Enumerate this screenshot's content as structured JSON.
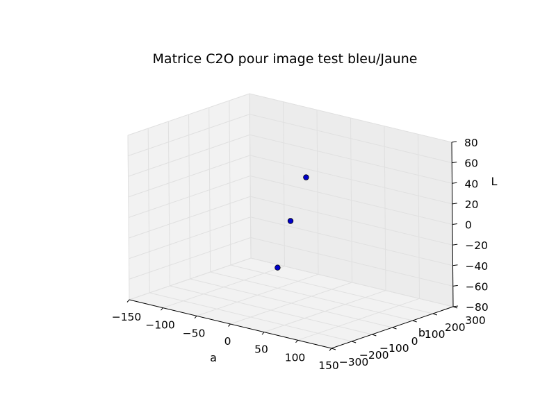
{
  "chart_data": {
    "type": "scatter",
    "projection": "3d",
    "title": "Matrice C2O pour image test bleu/Jaune",
    "xlabel": "a",
    "ylabel": "b",
    "zlabel": "L",
    "x_ticks": [
      "−150",
      "−100",
      "−50",
      "0",
      "50",
      "100",
      "150"
    ],
    "y_ticks": [
      "−300",
      "−200",
      "−100",
      "0",
      "100",
      "200",
      "300"
    ],
    "z_ticks": [
      "−80",
      "−60",
      "−40",
      "−20",
      "0",
      "20",
      "40",
      "60",
      "80"
    ],
    "xlim": [
      -150,
      150
    ],
    "ylim": [
      -300,
      300
    ],
    "zlim": [
      -80,
      80
    ],
    "grid": true,
    "series": [
      {
        "marker_color": "#0000cc",
        "points": [
          {
            "x": 0,
            "y": 0,
            "z": 0
          },
          {
            "x": 60,
            "y": -120,
            "z": 60
          },
          {
            "x": -50,
            "y": 100,
            "z": -60
          }
        ]
      }
    ]
  }
}
